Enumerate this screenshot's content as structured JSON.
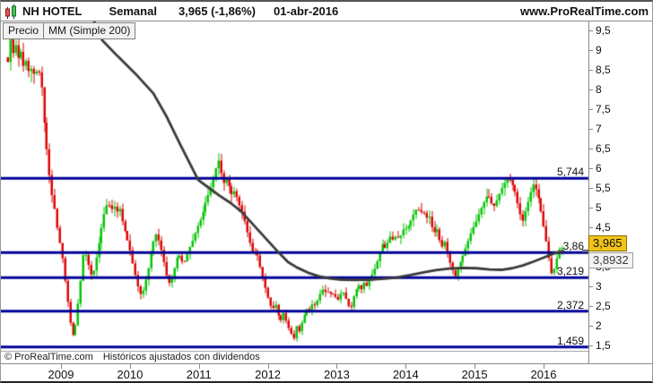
{
  "header": {
    "symbol": "NH HOTEL",
    "timeframe": "Semanal",
    "last_price": "3,965",
    "change_pct": "(-1,86%)",
    "date": "01-abr-2016",
    "site": "www.ProRealTime.com"
  },
  "tabs": [
    {
      "label": "Precio"
    },
    {
      "label": "MM (Simple 200)"
    }
  ],
  "footer": {
    "copyright": "© ProRealTime.com",
    "note": "Históricos ajustados con dividendos"
  },
  "price_axis": {
    "last_price_box": "3,965",
    "ma_price_box": "3,8932",
    "ticks": [
      {
        "v": 1.5,
        "label": "1,5"
      },
      {
        "v": 2,
        "label": "2"
      },
      {
        "v": 2.5,
        "label": "2,5"
      },
      {
        "v": 3,
        "label": "3"
      },
      {
        "v": 3.5,
        "label": "3,5"
      },
      {
        "v": 4,
        "label": "4"
      },
      {
        "v": 4.5,
        "label": "4,5"
      },
      {
        "v": 5,
        "label": "5"
      },
      {
        "v": 5.5,
        "label": "5,5"
      },
      {
        "v": 6,
        "label": "6"
      },
      {
        "v": 6.5,
        "label": "6,5"
      },
      {
        "v": 7,
        "label": "7"
      },
      {
        "v": 7.5,
        "label": "7,5"
      },
      {
        "v": 8,
        "label": "8"
      },
      {
        "v": 8.5,
        "label": "8,5"
      },
      {
        "v": 9,
        "label": "9"
      },
      {
        "v": 9.5,
        "label": "9,5"
      }
    ]
  },
  "colors": {
    "candle_up": "#00c400",
    "candle_down": "#dc0000",
    "level_line": "#000099",
    "ma_line": "#3a3a3a",
    "axis": "#8a8a8a"
  },
  "chart_data": {
    "type": "candlestick",
    "title": "NH HOTEL Semanal",
    "ylim": [
      1.5,
      9.5
    ],
    "y_tick_step": 0.5,
    "x_categories": [
      "2009",
      "2010",
      "2011",
      "2012",
      "2013",
      "2014",
      "2015",
      "2016"
    ],
    "grid": false,
    "legend": [
      "Precio",
      "MM (Simple 200)"
    ],
    "levels": [
      {
        "value": 5.744,
        "label": "5,744"
      },
      {
        "value": 3.86,
        "label": "3,86"
      },
      {
        "value": 3.219,
        "label": "3,219"
      },
      {
        "value": 2.372,
        "label": "2,372"
      },
      {
        "value": 1.459,
        "label": "1,459"
      }
    ],
    "last_close": 3.965,
    "ma_last_value": 3.8932,
    "series": [
      {
        "name": "Precio",
        "type": "candlestick-close-path",
        "path": [
          [
            8,
            8.7
          ],
          [
            11,
            9.3
          ],
          [
            14,
            8.9
          ],
          [
            17,
            9.15
          ],
          [
            20,
            8.75
          ],
          [
            23,
            9.0
          ],
          [
            26,
            8.5
          ],
          [
            29,
            8.8
          ],
          [
            32,
            8.35
          ],
          [
            35,
            8.6
          ],
          [
            38,
            8.3
          ],
          [
            41,
            8.55
          ],
          [
            44,
            8.35
          ],
          [
            46,
            8.0
          ],
          [
            48,
            7.3
          ],
          [
            51,
            6.6
          ],
          [
            54,
            5.9
          ],
          [
            57,
            5.35
          ],
          [
            60,
            5.0
          ],
          [
            63,
            4.5
          ],
          [
            66,
            4.1
          ],
          [
            69,
            3.7
          ],
          [
            72,
            3.1
          ],
          [
            75,
            2.55
          ],
          [
            78,
            2.0
          ],
          [
            81,
            1.72
          ],
          [
            84,
            2.1
          ],
          [
            87,
            2.7
          ],
          [
            90,
            3.3
          ],
          [
            93,
            4.0
          ],
          [
            96,
            3.7
          ],
          [
            99,
            3.45
          ],
          [
            102,
            3.2
          ],
          [
            105,
            3.55
          ],
          [
            108,
            3.9
          ],
          [
            111,
            4.3
          ],
          [
            114,
            4.7
          ],
          [
            117,
            5.0
          ],
          [
            120,
            5.15
          ],
          [
            123,
            4.9
          ],
          [
            126,
            5.1
          ],
          [
            129,
            4.85
          ],
          [
            132,
            5.05
          ],
          [
            135,
            4.7
          ],
          [
            138,
            4.45
          ],
          [
            141,
            4.2
          ],
          [
            144,
            3.95
          ],
          [
            147,
            3.6
          ],
          [
            150,
            3.3
          ],
          [
            153,
            3.0
          ],
          [
            156,
            2.8
          ],
          [
            159,
            2.9
          ],
          [
            162,
            3.2
          ],
          [
            165,
            3.5
          ],
          [
            168,
            3.9
          ],
          [
            171,
            4.2
          ],
          [
            174,
            4.35
          ],
          [
            177,
            4.1
          ],
          [
            180,
            3.85
          ],
          [
            183,
            3.5
          ],
          [
            186,
            3.15
          ],
          [
            189,
            3.05
          ],
          [
            192,
            3.3
          ],
          [
            195,
            3.6
          ],
          [
            198,
            3.85
          ],
          [
            201,
            3.7
          ],
          [
            204,
            3.55
          ],
          [
            207,
            3.75
          ],
          [
            210,
            3.95
          ],
          [
            213,
            4.1
          ],
          [
            216,
            4.3
          ],
          [
            219,
            4.5
          ],
          [
            222,
            4.65
          ],
          [
            225,
            4.85
          ],
          [
            228,
            5.1
          ],
          [
            231,
            5.3
          ],
          [
            234,
            5.5
          ],
          [
            237,
            5.7
          ],
          [
            240,
            6.0
          ],
          [
            243,
            6.2
          ],
          [
            246,
            5.85
          ],
          [
            249,
            5.6
          ],
          [
            252,
            5.75
          ],
          [
            255,
            5.5
          ],
          [
            258,
            5.3
          ],
          [
            261,
            5.45
          ],
          [
            264,
            5.2
          ],
          [
            267,
            5.0
          ],
          [
            270,
            4.85
          ],
          [
            273,
            4.55
          ],
          [
            276,
            4.25
          ],
          [
            279,
            4.0
          ],
          [
            282,
            3.75
          ],
          [
            285,
            3.95
          ],
          [
            288,
            3.6
          ],
          [
            291,
            3.35
          ],
          [
            294,
            3.05
          ],
          [
            297,
            2.8
          ],
          [
            300,
            2.55
          ],
          [
            303,
            2.4
          ],
          [
            306,
            2.6
          ],
          [
            309,
            2.3
          ],
          [
            312,
            2.1
          ],
          [
            315,
            2.35
          ],
          [
            318,
            2.15
          ],
          [
            321,
            1.95
          ],
          [
            324,
            1.8
          ],
          [
            327,
            1.68
          ],
          [
            330,
            2.0
          ],
          [
            333,
            1.85
          ],
          [
            336,
            2.1
          ],
          [
            339,
            2.3
          ],
          [
            342,
            2.45
          ],
          [
            345,
            2.35
          ],
          [
            348,
            2.6
          ],
          [
            351,
            2.5
          ],
          [
            354,
            2.7
          ],
          [
            357,
            2.85
          ],
          [
            360,
            2.95
          ],
          [
            363,
            2.8
          ],
          [
            366,
            2.9
          ],
          [
            369,
            2.75
          ],
          [
            372,
            2.85
          ],
          [
            375,
            2.6
          ],
          [
            378,
            2.75
          ],
          [
            381,
            2.9
          ],
          [
            384,
            2.75
          ],
          [
            387,
            2.55
          ],
          [
            390,
            2.4
          ],
          [
            393,
            2.7
          ],
          [
            396,
            2.9
          ],
          [
            399,
            3.05
          ],
          [
            402,
            2.9
          ],
          [
            405,
            3.1
          ],
          [
            408,
            3.0
          ],
          [
            411,
            3.15
          ],
          [
            414,
            3.3
          ],
          [
            417,
            3.45
          ],
          [
            420,
            3.65
          ],
          [
            423,
            3.9
          ],
          [
            426,
            4.1
          ],
          [
            429,
            3.95
          ],
          [
            432,
            4.15
          ],
          [
            435,
            4.3
          ],
          [
            438,
            4.15
          ],
          [
            441,
            4.3
          ],
          [
            444,
            4.2
          ],
          [
            447,
            4.35
          ],
          [
            450,
            4.5
          ],
          [
            453,
            4.45
          ],
          [
            456,
            4.6
          ],
          [
            459,
            4.75
          ],
          [
            462,
            4.9
          ],
          [
            465,
            5.0
          ],
          [
            468,
            4.85
          ],
          [
            471,
            4.95
          ],
          [
            474,
            4.7
          ],
          [
            477,
            4.85
          ],
          [
            480,
            4.55
          ],
          [
            483,
            4.35
          ],
          [
            486,
            4.5
          ],
          [
            489,
            4.2
          ],
          [
            492,
            4.0
          ],
          [
            495,
            4.15
          ],
          [
            498,
            3.85
          ],
          [
            501,
            3.6
          ],
          [
            504,
            3.4
          ],
          [
            507,
            3.25
          ],
          [
            510,
            3.45
          ],
          [
            513,
            3.65
          ],
          [
            516,
            3.8
          ],
          [
            519,
            4.0
          ],
          [
            522,
            4.2
          ],
          [
            525,
            4.4
          ],
          [
            528,
            4.55
          ],
          [
            531,
            4.7
          ],
          [
            534,
            4.9
          ],
          [
            537,
            5.05
          ],
          [
            540,
            5.2
          ],
          [
            543,
            5.35
          ],
          [
            546,
            5.2
          ],
          [
            549,
            5.0
          ],
          [
            552,
            5.1
          ],
          [
            555,
            5.3
          ],
          [
            558,
            5.45
          ],
          [
            561,
            5.6
          ],
          [
            564,
            5.7
          ],
          [
            567,
            5.74
          ],
          [
            570,
            5.6
          ],
          [
            573,
            5.45
          ],
          [
            576,
            5.15
          ],
          [
            579,
            4.85
          ],
          [
            582,
            4.65
          ],
          [
            585,
            4.9
          ],
          [
            588,
            5.15
          ],
          [
            591,
            5.4
          ],
          [
            594,
            5.6
          ],
          [
            597,
            5.45
          ],
          [
            600,
            5.2
          ],
          [
            603,
            4.85
          ],
          [
            606,
            4.45
          ],
          [
            609,
            4.05
          ],
          [
            612,
            3.6
          ],
          [
            615,
            3.22
          ],
          [
            618,
            3.55
          ],
          [
            621,
            3.8
          ],
          [
            624,
            4.04
          ],
          [
            626,
            3.965
          ]
        ]
      },
      {
        "name": "MM (Simple 200)",
        "type": "line",
        "path": [
          [
            104,
            9.73
          ],
          [
            113,
            9.25
          ],
          [
            130,
            8.85
          ],
          [
            150,
            8.4
          ],
          [
            170,
            7.9
          ],
          [
            185,
            7.3
          ],
          [
            200,
            6.6
          ],
          [
            210,
            6.15
          ],
          [
            220,
            5.7
          ],
          [
            232,
            5.5
          ],
          [
            244,
            5.3
          ],
          [
            256,
            5.12
          ],
          [
            268,
            4.9
          ],
          [
            280,
            4.6
          ],
          [
            290,
            4.35
          ],
          [
            300,
            4.1
          ],
          [
            310,
            3.85
          ],
          [
            320,
            3.62
          ],
          [
            330,
            3.48
          ],
          [
            342,
            3.35
          ],
          [
            354,
            3.26
          ],
          [
            366,
            3.2
          ],
          [
            380,
            3.17
          ],
          [
            395,
            3.16
          ],
          [
            410,
            3.17
          ],
          [
            425,
            3.19
          ],
          [
            440,
            3.22
          ],
          [
            455,
            3.28
          ],
          [
            470,
            3.35
          ],
          [
            485,
            3.41
          ],
          [
            500,
            3.45
          ],
          [
            515,
            3.47
          ],
          [
            530,
            3.46
          ],
          [
            545,
            3.43
          ],
          [
            558,
            3.42
          ],
          [
            570,
            3.46
          ],
          [
            582,
            3.53
          ],
          [
            594,
            3.63
          ],
          [
            606,
            3.74
          ],
          [
            616,
            3.83
          ],
          [
            627,
            3.8932
          ]
        ]
      }
    ]
  }
}
